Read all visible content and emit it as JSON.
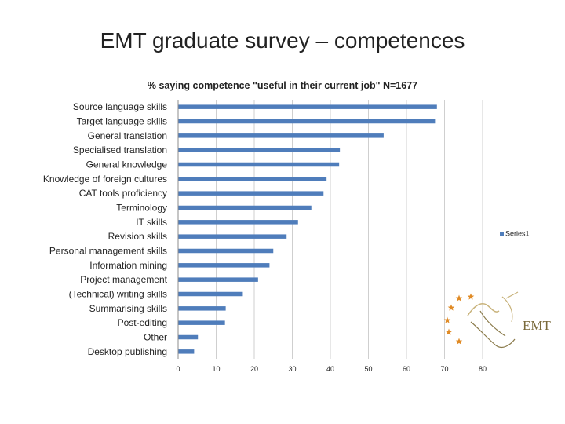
{
  "slide": {
    "title": "EMT graduate survey – competences"
  },
  "logo": {
    "text": "EMT"
  },
  "colors": {
    "bar": "#4f7dbb",
    "grid": "#cfcfcf",
    "axis": "#8c8c8c",
    "star": "#e08a24"
  },
  "chart_data": {
    "type": "bar",
    "orientation": "horizontal",
    "title": "% saying competence \"useful in their current job\" N=1677",
    "categories": [
      "Source language skills",
      "Target language skills",
      "General translation",
      "Specialised translation",
      "General knowledge",
      "Knowledge of foreign cultures",
      "CAT tools proficiency",
      "Terminology",
      "IT skills",
      "Revision skills",
      "Personal management skills",
      "Information mining",
      "Project management",
      "(Technical) writing skills",
      "Summarising skills",
      "Post-editing",
      "Other",
      "Desktop publishing"
    ],
    "series": [
      {
        "name": "Series1",
        "values": [
          68,
          67.5,
          54,
          42.5,
          42.3,
          39,
          38.2,
          35,
          31.5,
          28.5,
          25,
          24,
          21,
          17,
          12.5,
          12.3,
          5.2,
          4.2
        ]
      }
    ],
    "xlim": [
      0,
      80
    ],
    "xticks": [
      "0",
      "10",
      "20",
      "30",
      "40",
      "50",
      "60",
      "70",
      "80"
    ],
    "grid": true,
    "legend": "right"
  }
}
